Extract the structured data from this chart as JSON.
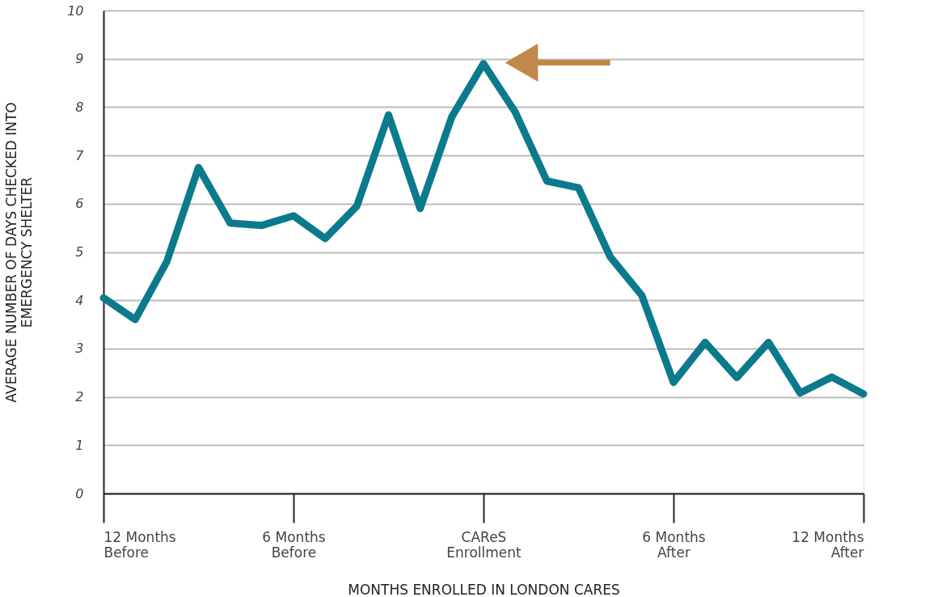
{
  "chart_data": {
    "type": "line",
    "xlabel": "MONTHS ENROLLED IN LONDON CARES",
    "ylabel": "AVERAGE NUMBER OF DAYS CHECKED INTO\nEMERGENCY SHELTER",
    "x": [
      -12,
      -11,
      -10,
      -9,
      -8,
      -7,
      -6,
      -5,
      -4,
      -3,
      -2,
      -1,
      0,
      1,
      2,
      3,
      4,
      5,
      6,
      7,
      8,
      9,
      10,
      11,
      12
    ],
    "series": [
      {
        "color": "#0b7a8c",
        "values": [
          4.05,
          3.6,
          4.8,
          6.75,
          5.6,
          5.55,
          5.75,
          5.28,
          5.95,
          7.84,
          5.9,
          7.8,
          8.9,
          7.9,
          6.47,
          6.33,
          4.9,
          4.1,
          2.3,
          3.13,
          2.4,
          3.13,
          2.08,
          2.41,
          2.06
        ]
      }
    ],
    "xlim": [
      -12,
      12
    ],
    "xticks": [
      {
        "value": -12,
        "label": "12 Months\nBefore"
      },
      {
        "value": -6,
        "label": "6 Months\nBefore"
      },
      {
        "value": 0,
        "label": "CAReS\nEnrollment"
      },
      {
        "value": 6,
        "label": "6 Months\nAfter"
      },
      {
        "value": 12,
        "label": "12 Months\nAfter"
      }
    ],
    "ylim": [
      0,
      10
    ],
    "yticks": [
      0,
      1,
      2,
      3,
      4,
      5,
      6,
      7,
      8,
      9,
      10
    ],
    "grid": "y",
    "marker": "none",
    "line_style": "solid"
  }
}
